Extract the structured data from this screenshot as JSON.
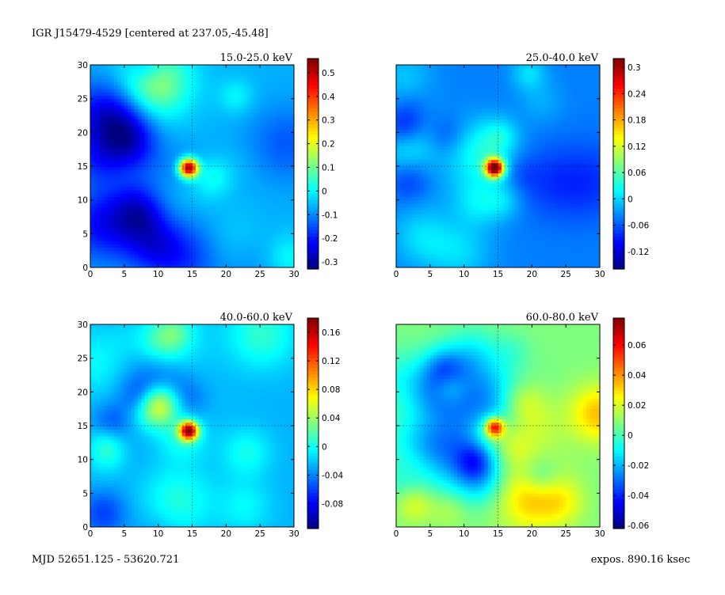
{
  "header": {
    "title": "IGR J15479-4529  [centered at 237.05,-45.48]",
    "mjd": "MJD 52651.125 - 53620.721",
    "exposure": "expos. 890.16 ksec"
  },
  "colormap": "jet",
  "chart_data": [
    {
      "type": "heatmap",
      "title": "15.0-25.0 keV",
      "xlim": [
        0,
        30
      ],
      "ylim": [
        0,
        30
      ],
      "xticks": [
        "0",
        "5",
        "10",
        "15",
        "20",
        "25",
        "30"
      ],
      "yticks": [
        "0",
        "5",
        "10",
        "15",
        "20",
        "25",
        "30"
      ],
      "crosshair": [
        15,
        15
      ],
      "source_peak": {
        "x": 14.5,
        "y": 14.8
      },
      "colorbar": {
        "min": -0.33,
        "max": 0.56,
        "ticks": [
          "0.5",
          "0.4",
          "0.3",
          "0.2",
          "0.1",
          "0",
          "-0.1",
          "-0.2",
          "-0.3"
        ],
        "tick_values": [
          0.5,
          0.4,
          0.3,
          0.2,
          0.1,
          0,
          -0.1,
          -0.2,
          -0.3
        ]
      }
    },
    {
      "type": "heatmap",
      "title": "25.0-40.0 keV",
      "xlim": [
        0,
        30
      ],
      "ylim": [
        0,
        30
      ],
      "xticks": [
        "0",
        "5",
        "10",
        "15",
        "20",
        "25",
        "30"
      ],
      "yticks": [],
      "crosshair": [
        15,
        15
      ],
      "source_peak": {
        "x": 14.5,
        "y": 14.8
      },
      "colorbar": {
        "min": -0.16,
        "max": 0.32,
        "ticks": [
          "0.3",
          "0.24",
          "0.18",
          "0.12",
          "0.06",
          "0",
          "-0.06",
          "-0.12"
        ],
        "tick_values": [
          0.3,
          0.24,
          0.18,
          0.12,
          0.06,
          0,
          -0.06,
          -0.12
        ]
      }
    },
    {
      "type": "heatmap",
      "title": "40.0-60.0 keV",
      "xlim": [
        0,
        30
      ],
      "ylim": [
        0,
        30
      ],
      "xticks": [
        "0",
        "5",
        "10",
        "15",
        "20",
        "25",
        "30"
      ],
      "yticks": [
        "0",
        "5",
        "10",
        "15",
        "20",
        "25",
        "30"
      ],
      "crosshair": [
        15,
        15
      ],
      "source_peak": {
        "x": 14.5,
        "y": 14.3
      },
      "colorbar": {
        "min": -0.115,
        "max": 0.18,
        "ticks": [
          "0.16",
          "0.12",
          "0.08",
          "0.04",
          "0",
          "-0.04",
          "-0.08"
        ],
        "tick_values": [
          0.16,
          0.12,
          0.08,
          0.04,
          0,
          -0.04,
          -0.08
        ]
      }
    },
    {
      "type": "heatmap",
      "title": "60.0-80.0 keV",
      "xlim": [
        0,
        30
      ],
      "ylim": [
        0,
        30
      ],
      "xticks": [
        "0",
        "5",
        "10",
        "15",
        "20",
        "25",
        "30"
      ],
      "yticks": [],
      "crosshair": [
        15,
        15
      ],
      "source_peak": {
        "x": 14.5,
        "y": 14.8
      },
      "colorbar": {
        "min": -0.062,
        "max": 0.078,
        "ticks": [
          "0.06",
          "0.04",
          "0.02",
          "0",
          "-0.02",
          "-0.04",
          "-0.06"
        ],
        "tick_values": [
          0.06,
          0.04,
          0.02,
          0,
          -0.02,
          -0.04,
          -0.06
        ]
      }
    }
  ]
}
